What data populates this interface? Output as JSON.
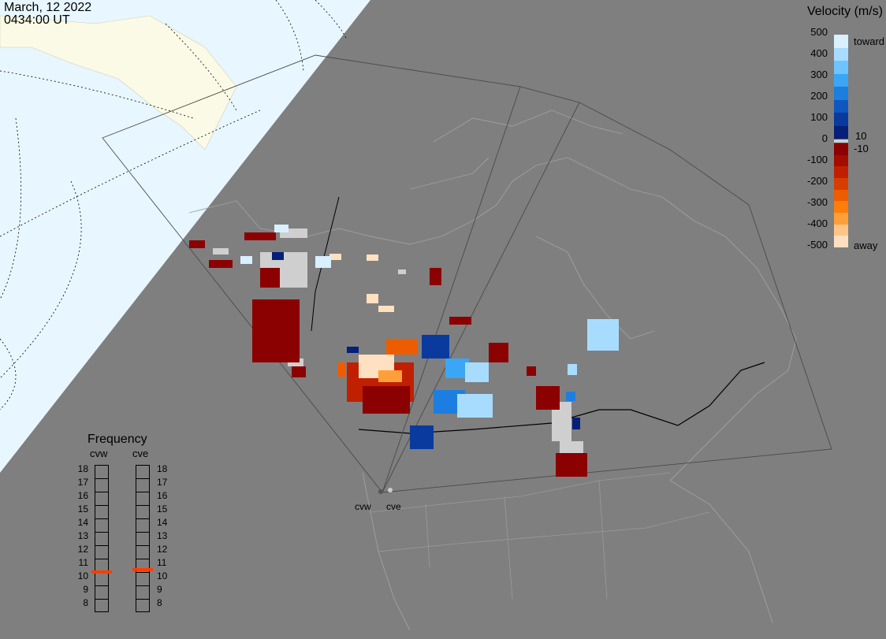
{
  "timestamp": {
    "date": "March, 12 2022",
    "time": "0434:00 UT"
  },
  "velocity_scale": {
    "title": "Velocity (m/s)",
    "ticks": [
      "500",
      "400",
      "300",
      "200",
      "100",
      "0",
      "-100",
      "-200",
      "-300",
      "-400",
      "-500"
    ],
    "toward_label": "toward",
    "away_label": "away",
    "threshold_pos": "10",
    "threshold_neg": "-10",
    "colors_toward": [
      "#d8f0ff",
      "#a8dcff",
      "#6ec4ff",
      "#3aa6f5",
      "#1c7ee0",
      "#0f57c0",
      "#0a3a9e",
      "#061f78"
    ],
    "colors_away": [
      "#8b0000",
      "#a30d00",
      "#c02000",
      "#d83d00",
      "#ee5c00",
      "#ff7d0a",
      "#ff9f3a",
      "#ffc486",
      "#ffe0c0"
    ],
    "ground_scatter_color": "#cfcfcf"
  },
  "frequency_panel": {
    "title": "Frequency",
    "radars": [
      {
        "name": "cvw",
        "value_mhz": 10.5
      },
      {
        "name": "cve",
        "value_mhz": 10.7
      }
    ],
    "levels": [
      "18",
      "17",
      "16",
      "15",
      "14",
      "13",
      "12",
      "11",
      "10",
      "9",
      "8"
    ],
    "indicator_color": "#ff3c00"
  },
  "radar_sites": [
    "cvw",
    "cve"
  ],
  "map_colors": {
    "ocean_night": "#7f7f7f",
    "ocean_day": "#e8f6ff",
    "land_day": "#fbfae6",
    "coast": "#a0a0a0"
  }
}
